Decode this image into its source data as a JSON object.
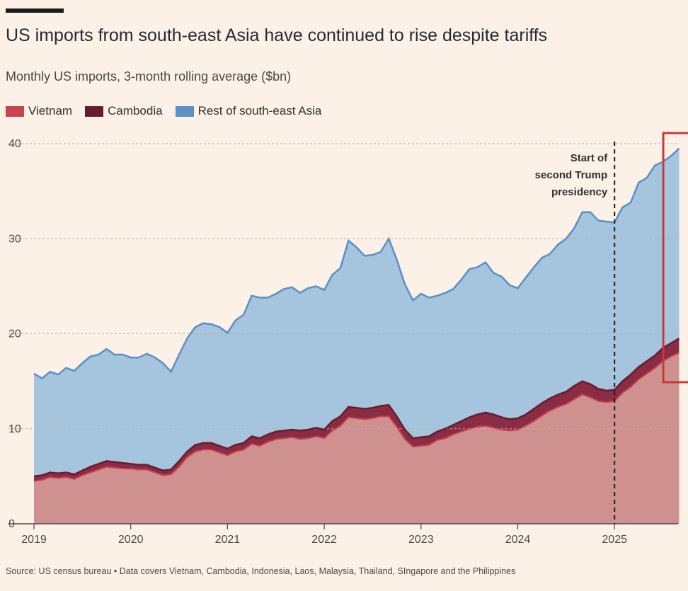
{
  "header": {
    "title": "US imports from south-east Asia have continued to rise despite tariffs",
    "subtitle": "Monthly US imports, 3-month rolling average ($bn)"
  },
  "legend": [
    {
      "label": "Vietnam",
      "color": "#c8434f"
    },
    {
      "label": "Cambodia",
      "color": "#6b1a2e"
    },
    {
      "label": "Rest of south-east Asia",
      "color": "#5b8fc7"
    }
  ],
  "footer": {
    "source": "Source: US census bureau • Data covers Vietnam, Cambodia, Indonesia, Laos, Malaysia, Thailand, SIngapore and the Philippines"
  },
  "chart_data": {
    "type": "area",
    "stacked": true,
    "title": "US imports from south-east Asia have continued to rise despite tariffs",
    "ylabel": "Monthly US imports, 3-month rolling average ($bn)",
    "xlabel": "",
    "ylim": [
      0,
      40
    ],
    "yticks": [
      0,
      10,
      20,
      30,
      40
    ],
    "xtick_labels": [
      "2019",
      "2020",
      "2021",
      "2022",
      "2023",
      "2024",
      "2025"
    ],
    "grid": true,
    "annotation": {
      "text": [
        "Start of",
        "second Trump",
        "presidency"
      ],
      "x": 2025.0
    },
    "highlight_box": {
      "x_start": 2025.5,
      "x_end": 2025.75
    },
    "colors": {
      "vietnam": "#cf9190",
      "cambodia": "#8a2c43",
      "rest": "#a5c4dd",
      "total_line": "#5b8fc7",
      "vietnam_line": "#c8434f",
      "cambodia_line": "#6b1a2e",
      "highlight": "#c83a3a"
    },
    "x": [
      2019.0,
      2019.083,
      2019.167,
      2019.25,
      2019.333,
      2019.417,
      2019.5,
      2019.583,
      2019.667,
      2019.75,
      2019.833,
      2019.917,
      2020.0,
      2020.083,
      2020.167,
      2020.25,
      2020.333,
      2020.417,
      2020.5,
      2020.583,
      2020.667,
      2020.75,
      2020.833,
      2020.917,
      2021.0,
      2021.083,
      2021.167,
      2021.25,
      2021.333,
      2021.417,
      2021.5,
      2021.583,
      2021.667,
      2021.75,
      2021.833,
      2021.917,
      2022.0,
      2022.083,
      2022.167,
      2022.25,
      2022.333,
      2022.417,
      2022.5,
      2022.583,
      2022.667,
      2022.75,
      2022.833,
      2022.917,
      2023.0,
      2023.083,
      2023.167,
      2023.25,
      2023.333,
      2023.417,
      2023.5,
      2023.583,
      2023.667,
      2023.75,
      2023.833,
      2023.917,
      2024.0,
      2024.083,
      2024.167,
      2024.25,
      2024.333,
      2024.417,
      2024.5,
      2024.583,
      2024.667,
      2024.75,
      2024.833,
      2024.917,
      2025.0,
      2025.083,
      2025.167,
      2025.25,
      2025.333,
      2025.417,
      2025.5,
      2025.583,
      2025.667
    ],
    "series": [
      {
        "name": "Vietnam",
        "values": [
          4.5,
          4.6,
          4.9,
          4.8,
          4.9,
          4.7,
          5.1,
          5.4,
          5.7,
          6.0,
          5.9,
          5.8,
          5.8,
          5.7,
          5.7,
          5.4,
          5.1,
          5.2,
          6.0,
          7.0,
          7.6,
          7.8,
          7.8,
          7.5,
          7.2,
          7.6,
          7.8,
          8.4,
          8.2,
          8.6,
          8.9,
          9.0,
          9.1,
          8.9,
          9.0,
          9.2,
          9.0,
          9.8,
          10.3,
          11.2,
          11.1,
          11.0,
          11.1,
          11.3,
          11.3,
          10.2,
          8.9,
          8.1,
          8.2,
          8.3,
          8.8,
          9.0,
          9.4,
          9.7,
          10.0,
          10.2,
          10.3,
          10.1,
          9.9,
          9.8,
          9.9,
          10.3,
          10.8,
          11.4,
          11.9,
          12.3,
          12.6,
          13.1,
          13.6,
          13.3,
          12.9,
          12.8,
          12.9,
          13.8,
          14.4,
          15.2,
          15.8,
          16.4,
          17.1,
          17.6,
          18.0
        ]
      },
      {
        "name": "Cambodia",
        "values": [
          0.5,
          0.5,
          0.5,
          0.5,
          0.5,
          0.5,
          0.5,
          0.6,
          0.6,
          0.6,
          0.6,
          0.6,
          0.5,
          0.5,
          0.5,
          0.5,
          0.5,
          0.5,
          0.6,
          0.6,
          0.7,
          0.7,
          0.7,
          0.7,
          0.7,
          0.7,
          0.7,
          0.8,
          0.8,
          0.8,
          0.8,
          0.8,
          0.8,
          0.9,
          0.9,
          0.9,
          0.9,
          1.0,
          1.0,
          1.1,
          1.1,
          1.1,
          1.1,
          1.1,
          1.2,
          1.1,
          1.0,
          0.9,
          0.9,
          0.9,
          0.9,
          1.0,
          1.0,
          1.1,
          1.2,
          1.3,
          1.4,
          1.4,
          1.3,
          1.2,
          1.2,
          1.2,
          1.3,
          1.3,
          1.3,
          1.3,
          1.3,
          1.4,
          1.4,
          1.4,
          1.3,
          1.2,
          1.2,
          1.2,
          1.3,
          1.3,
          1.3,
          1.3,
          1.4,
          1.4,
          1.5
        ]
      },
      {
        "name": "Rest of south-east Asia",
        "values": [
          10.8,
          10.2,
          10.6,
          10.4,
          11.0,
          10.9,
          11.3,
          11.6,
          11.5,
          11.8,
          11.3,
          11.4,
          11.2,
          11.3,
          11.7,
          11.6,
          11.3,
          10.3,
          11.2,
          11.9,
          12.4,
          12.6,
          12.5,
          12.5,
          12.2,
          13.1,
          13.5,
          14.8,
          14.8,
          14.4,
          14.5,
          14.9,
          15.0,
          14.5,
          14.9,
          14.9,
          14.7,
          15.4,
          15.6,
          17.5,
          16.9,
          16.1,
          16.1,
          16.2,
          17.5,
          16.5,
          15.3,
          14.5,
          15.1,
          14.6,
          14.3,
          14.3,
          14.3,
          14.9,
          15.6,
          15.5,
          15.8,
          14.9,
          14.8,
          14.1,
          13.7,
          14.4,
          14.9,
          15.3,
          15.2,
          15.8,
          16.1,
          16.6,
          17.8,
          18.1,
          17.7,
          17.8,
          17.6,
          18.3,
          18.1,
          19.4,
          19.3,
          20.0,
          19.6,
          19.7,
          20.0
        ]
      }
    ]
  }
}
